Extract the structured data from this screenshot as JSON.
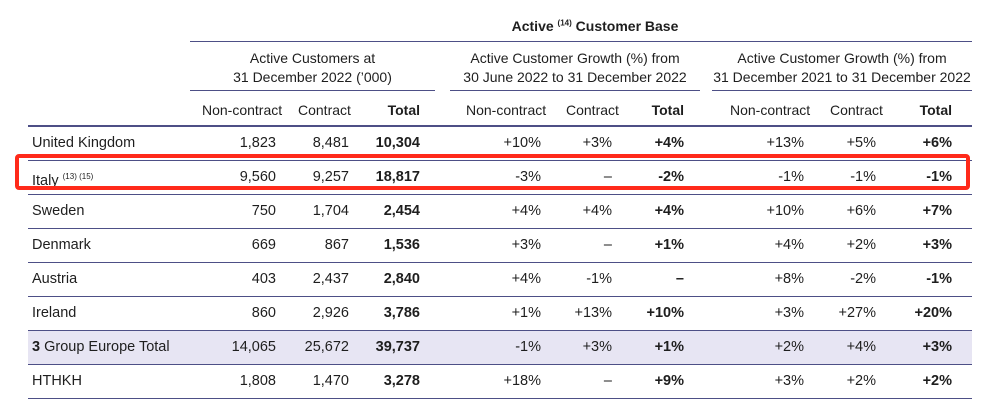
{
  "title": {
    "prefix": "Active",
    "note": "(14)",
    "suffix": "Customer Base"
  },
  "groups": [
    {
      "line1": "Active Customers at",
      "line2": "31 December 2022 (’000)"
    },
    {
      "line1": "Active Customer Growth (%) from",
      "line2": "30 June 2022 to 31 December 2022"
    },
    {
      "line1": "Active Customer Growth (%) from",
      "line2": "31 December 2021 to 31 December 2022"
    }
  ],
  "subheaders": [
    "Non-contract",
    "Contract",
    "Total",
    "Non-contract",
    "Contract",
    "Total",
    "Non-contract",
    "Contract",
    "Total"
  ],
  "rows": [
    {
      "label": "United Kingdom",
      "cells": [
        "1,823",
        "8,481",
        "10,304",
        "+10%",
        "+3%",
        "+4%",
        "+13%",
        "+5%",
        "+6%"
      ]
    },
    {
      "label": "Italy",
      "note": "(13) (15)",
      "cells": [
        "9,560",
        "9,257",
        "18,817",
        "-3%",
        "–",
        "-2%",
        "-1%",
        "-1%",
        "-1%"
      ]
    },
    {
      "label": "Sweden",
      "cells": [
        "750",
        "1,704",
        "2,454",
        "+4%",
        "+4%",
        "+4%",
        "+10%",
        "+6%",
        "+7%"
      ]
    },
    {
      "label": "Denmark",
      "cells": [
        "669",
        "867",
        "1,536",
        "+3%",
        "–",
        "+1%",
        "+4%",
        "+2%",
        "+3%"
      ]
    },
    {
      "label": "Austria",
      "cells": [
        "403",
        "2,437",
        "2,840",
        "+4%",
        "-1%",
        "–",
        "+8%",
        "-2%",
        "-1%"
      ]
    },
    {
      "label": "Ireland",
      "cells": [
        "860",
        "2,926",
        "3,786",
        "+1%",
        "+13%",
        "+10%",
        "+3%",
        "+27%",
        "+20%"
      ]
    },
    {
      "label_strong": "3",
      "label": " Group Europe Total",
      "cells": [
        "14,065",
        "25,672",
        "39,737",
        "-1%",
        "+3%",
        "+1%",
        "+2%",
        "+4%",
        "+3%"
      ]
    },
    {
      "label": "HTHKH",
      "cells": [
        "1,808",
        "1,470",
        "3,278",
        "+18%",
        "–",
        "+9%",
        "+3%",
        "+2%",
        "+2%"
      ]
    }
  ],
  "colors": {
    "rule": "#4d4f86",
    "total_row_fill": "#e7e5f3",
    "highlight": "#ff2a1a"
  }
}
